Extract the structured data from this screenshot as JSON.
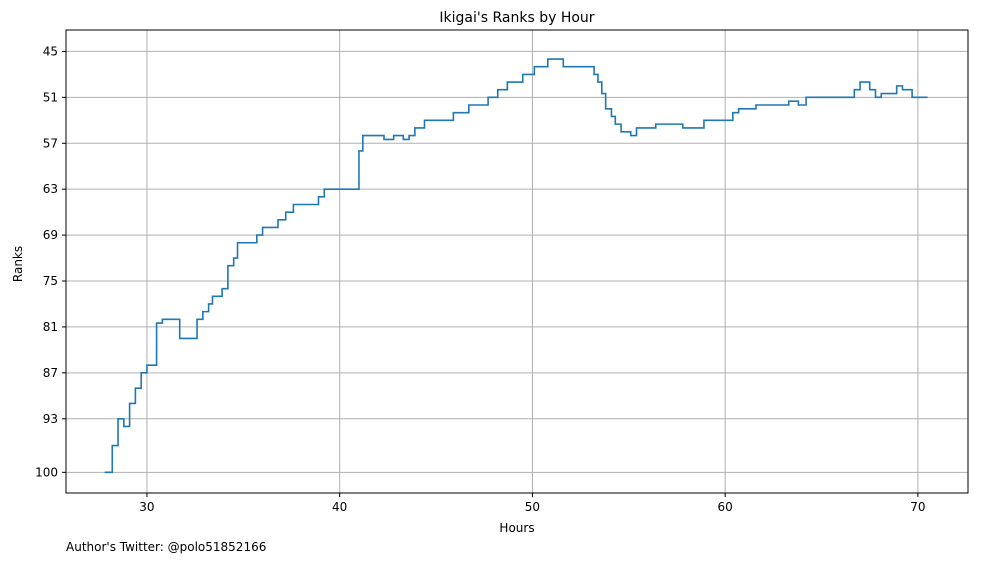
{
  "footer": {
    "text": "Author's Twitter: @polo51852166"
  },
  "chart_data": {
    "type": "line",
    "step": "post",
    "title": "Ikigai's Ranks by Hour",
    "xlabel": "Hours",
    "ylabel": "Ranks",
    "xlim": [
      25.8,
      72.6
    ],
    "ylim": [
      102.7,
      42.2
    ],
    "y_inverted": true,
    "grid": true,
    "xticks": [
      30,
      40,
      50,
      60,
      70
    ],
    "yticks": [
      45,
      51,
      57,
      63,
      69,
      75,
      81,
      87,
      93,
      100
    ],
    "color": "#1f77b4",
    "series": [
      {
        "x": [
          27.8,
          28.2,
          28.5,
          28.8,
          29.1,
          29.4,
          29.7,
          30.0,
          30.5,
          30.8,
          31.7,
          32.0,
          32.6,
          32.9,
          33.2,
          33.4,
          33.9,
          34.2,
          34.5,
          34.7,
          35.5,
          35.7,
          36.0,
          36.8,
          37.2,
          37.6,
          38.9,
          39.2,
          41.0,
          41.2,
          42.3,
          42.8,
          43.3,
          43.6,
          43.9,
          44.4,
          45.9,
          46.7,
          47.7,
          48.2,
          48.7,
          49.5,
          50.1,
          50.8,
          51.6,
          53.2,
          53.4,
          53.6,
          53.8,
          54.1,
          54.3,
          54.6,
          55.1,
          55.4,
          56.1,
          56.4,
          57.8,
          58.9,
          60.2,
          60.4,
          60.7,
          61.6,
          63.3,
          63.8,
          64.2,
          66.7,
          67.0,
          67.5,
          67.8,
          68.1,
          68.9,
          69.2,
          69.7,
          70.5
        ],
        "y": [
          100,
          96.5,
          93,
          94,
          91,
          89,
          87,
          86,
          80.5,
          80,
          82.5,
          82.5,
          80,
          79,
          78,
          77,
          76,
          73,
          72,
          70,
          70,
          69,
          68,
          67,
          66,
          65,
          64,
          63,
          58,
          56,
          56.5,
          56,
          56.5,
          56,
          55,
          54,
          53,
          52,
          51,
          50,
          49,
          48,
          47,
          46,
          47,
          48,
          49,
          50.5,
          52.5,
          53.5,
          54.5,
          55.5,
          56,
          55,
          55,
          54.5,
          55,
          54,
          54,
          53,
          52.5,
          52,
          51.5,
          52,
          51,
          50,
          49,
          50,
          51,
          50.5,
          49.5,
          50,
          51,
          51
        ]
      }
    ]
  }
}
